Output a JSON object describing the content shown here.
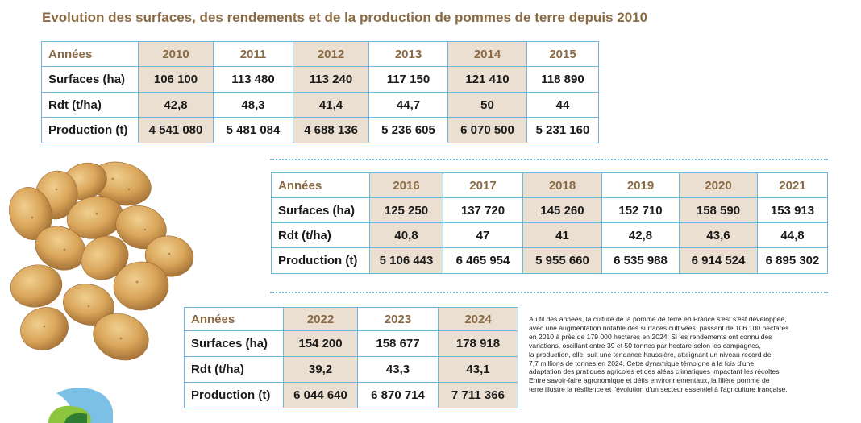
{
  "title": "Evolution des surfaces, des rendements et de la production de pommes de terre depuis 2010",
  "tables": [
    {
      "header": "Années",
      "years": [
        "2010",
        "2011",
        "2012",
        "2013",
        "2014",
        "2015"
      ],
      "rows": [
        {
          "label": "Surfaces (ha)",
          "values": [
            "106 100",
            "113 480",
            "113 240",
            "117 150",
            "121 410",
            "118 890"
          ]
        },
        {
          "label": "Rdt (t/ha)",
          "values": [
            "42,8",
            "48,3",
            "41,4",
            "44,7",
            "50",
            "44"
          ]
        },
        {
          "label": "Production (t)",
          "values": [
            "4 541 080",
            "5 481 084",
            "4 688 136",
            "5 236 605",
            "6 070 500",
            "5 231 160"
          ]
        }
      ]
    },
    {
      "header": "Années",
      "years": [
        "2016",
        "2017",
        "2018",
        "2019",
        "2020",
        "2021"
      ],
      "rows": [
        {
          "label": "Surfaces (ha)",
          "values": [
            "125 250",
            "137 720",
            "145 260",
            "152 710",
            "158 590",
            "153 913"
          ]
        },
        {
          "label": "Rdt (t/ha)",
          "values": [
            "40,8",
            "47",
            "41",
            "42,8",
            "43,6",
            "44,8"
          ]
        },
        {
          "label": "Production (t)",
          "values": [
            "5 106 443",
            "6 465 954",
            "5 955 660",
            "6 535 988",
            "6 914 524",
            "6 895 302"
          ]
        }
      ]
    },
    {
      "header": "Années",
      "years": [
        "2022",
        "2023",
        "2024"
      ],
      "rows": [
        {
          "label": "Surfaces (ha)",
          "values": [
            "154 200",
            "158 677",
            "178 918"
          ]
        },
        {
          "label": "Rdt (t/ha)",
          "values": [
            "39,2",
            "43,3",
            "43,1"
          ]
        },
        {
          "label": "Production (t)",
          "values": [
            "6 044 640",
            "6 870 714",
            "7 711 366"
          ]
        }
      ]
    }
  ],
  "paragraph_lines": [
    "Au fil des années, la culture de la pomme de terre en France s'est s'est développée,",
    "avec une augmentation notable des surfaces cultivées, passant de 106 100 hectares",
    "en 2010 à près de 179 000 hectares en 2024. Si les rendements ont connu des",
    "variations, oscillant entre 39 et 50 tonnes par hectare selon les campagnes,",
    "la production, elle, suit une tendance haussière, atteignant un niveau record de",
    "7,7 millions de tonnes en 2024. Cette dynamique témoigne à la fois d'une",
    "adaptation des pratiques agricoles et des aléas climatiques impactant les récoltes.",
    "Entre savoir-faire agronomique et défis environnementaux, la filière pomme de",
    "terre illustre la résilience et l'évolution d'un secteur essentiel à l'agriculture française."
  ],
  "colors": {
    "title": "#8a6a45",
    "border": "#6fb6dc",
    "shade": "#eadfd1",
    "potato": "#d9a55a"
  },
  "icons": {
    "photo": "potatoes-image",
    "logo": "brand-logo"
  }
}
